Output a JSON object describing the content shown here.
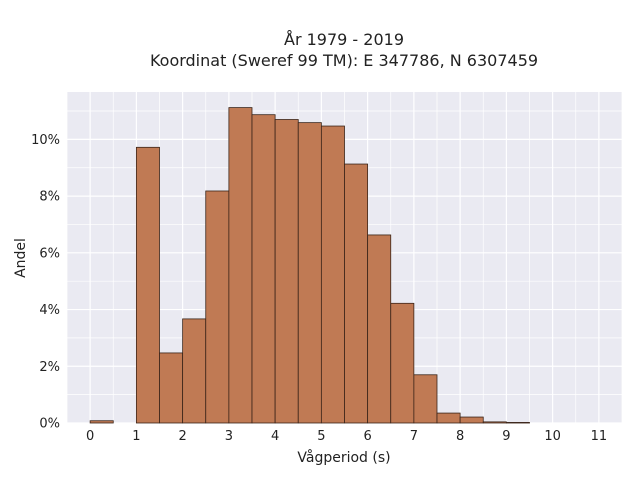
{
  "chart_data": {
    "type": "bar",
    "title_lines": [
      "År 1979 - 2019",
      "Koordinat (Sweref 99 TM): E 347786, N 6307459"
    ],
    "xlabel": "Vågperiod (s)",
    "ylabel": "Andel",
    "bin_width": 0.5,
    "bins": [
      {
        "start": 0.0,
        "value": 0.0008
      },
      {
        "start": 0.5,
        "value": 0.0
      },
      {
        "start": 1.0,
        "value": 0.0972
      },
      {
        "start": 1.5,
        "value": 0.0247
      },
      {
        "start": 2.0,
        "value": 0.0367
      },
      {
        "start": 2.5,
        "value": 0.0818
      },
      {
        "start": 3.0,
        "value": 0.1112
      },
      {
        "start": 3.5,
        "value": 0.1087
      },
      {
        "start": 4.0,
        "value": 0.107
      },
      {
        "start": 4.5,
        "value": 0.1059
      },
      {
        "start": 5.0,
        "value": 0.1047
      },
      {
        "start": 5.5,
        "value": 0.0913
      },
      {
        "start": 6.0,
        "value": 0.0663
      },
      {
        "start": 6.5,
        "value": 0.0422
      },
      {
        "start": 7.0,
        "value": 0.017
      },
      {
        "start": 7.5,
        "value": 0.0035
      },
      {
        "start": 8.0,
        "value": 0.0021
      },
      {
        "start": 8.5,
        "value": 0.0004
      },
      {
        "start": 9.0,
        "value": 0.0002
      }
    ],
    "x_ticks": [
      {
        "value": 0,
        "label": "0"
      },
      {
        "value": 1,
        "label": "1"
      },
      {
        "value": 2,
        "label": "2"
      },
      {
        "value": 3,
        "label": "3"
      },
      {
        "value": 4,
        "label": "4"
      },
      {
        "value": 5,
        "label": "5"
      },
      {
        "value": 6,
        "label": "6"
      },
      {
        "value": 7,
        "label": "7"
      },
      {
        "value": 8,
        "label": "8"
      },
      {
        "value": 9,
        "label": "9"
      },
      {
        "value": 10,
        "label": "10"
      },
      {
        "value": 11,
        "label": "11"
      }
    ],
    "y_ticks": [
      {
        "value": 0.0,
        "label": "0%"
      },
      {
        "value": 0.02,
        "label": "2%"
      },
      {
        "value": 0.04,
        "label": "4%"
      },
      {
        "value": 0.06,
        "label": "6%"
      },
      {
        "value": 0.08,
        "label": "8%"
      },
      {
        "value": 0.1,
        "label": "10%"
      }
    ],
    "xlim": [
      -0.5,
      11.5
    ],
    "ylim": [
      0,
      0.1167
    ],
    "grid": true,
    "colors": {
      "bar_fill": "#c07a54",
      "bar_edge": "#3a2418",
      "plot_background": "#eaeaf2",
      "grid": "#ffffff"
    }
  }
}
